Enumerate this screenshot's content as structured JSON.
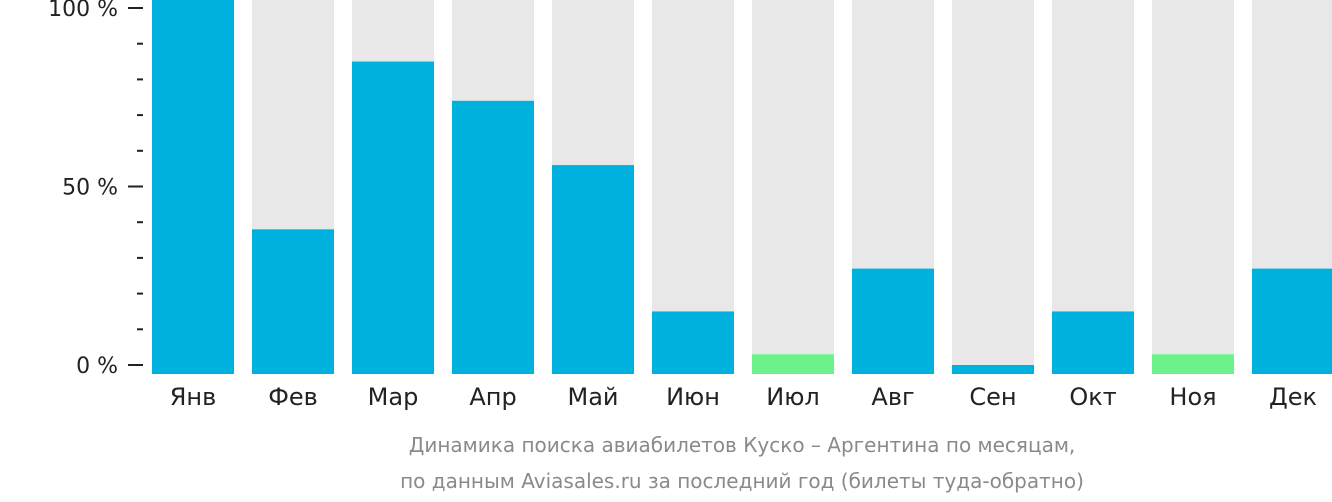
{
  "chart_data": {
    "type": "bar",
    "categories": [
      "Янв",
      "Фев",
      "Мар",
      "Апр",
      "Май",
      "Июн",
      "Июл",
      "Авг",
      "Сен",
      "Окт",
      "Ноя",
      "Дек"
    ],
    "values": [
      100,
      38,
      85,
      74,
      56,
      15,
      3,
      27,
      0,
      15,
      3,
      27
    ],
    "bar_colors": [
      "#00b0dd",
      "#00b0dd",
      "#00b0dd",
      "#00b0dd",
      "#00b0dd",
      "#00b0dd",
      "#6cf28a",
      "#00b0dd",
      "#00b0dd",
      "#00b0dd",
      "#6cf28a",
      "#00b0dd"
    ],
    "background_bar_color": "#e8e8e8",
    "ylim": [
      0,
      100
    ],
    "yticks": [
      {
        "value": 0,
        "label": "0 %"
      },
      {
        "value": 50,
        "label": "50 %"
      },
      {
        "value": 100,
        "label": "100 %"
      }
    ],
    "minor_tick_step": 10,
    "caption_line1": "Динамика поиска авиабилетов Куско – Аргентина по месяцам,",
    "caption_line2": "по данным Aviasales.ru за последний год (билеты туда-обратно)",
    "grid": false,
    "legend": "none"
  }
}
